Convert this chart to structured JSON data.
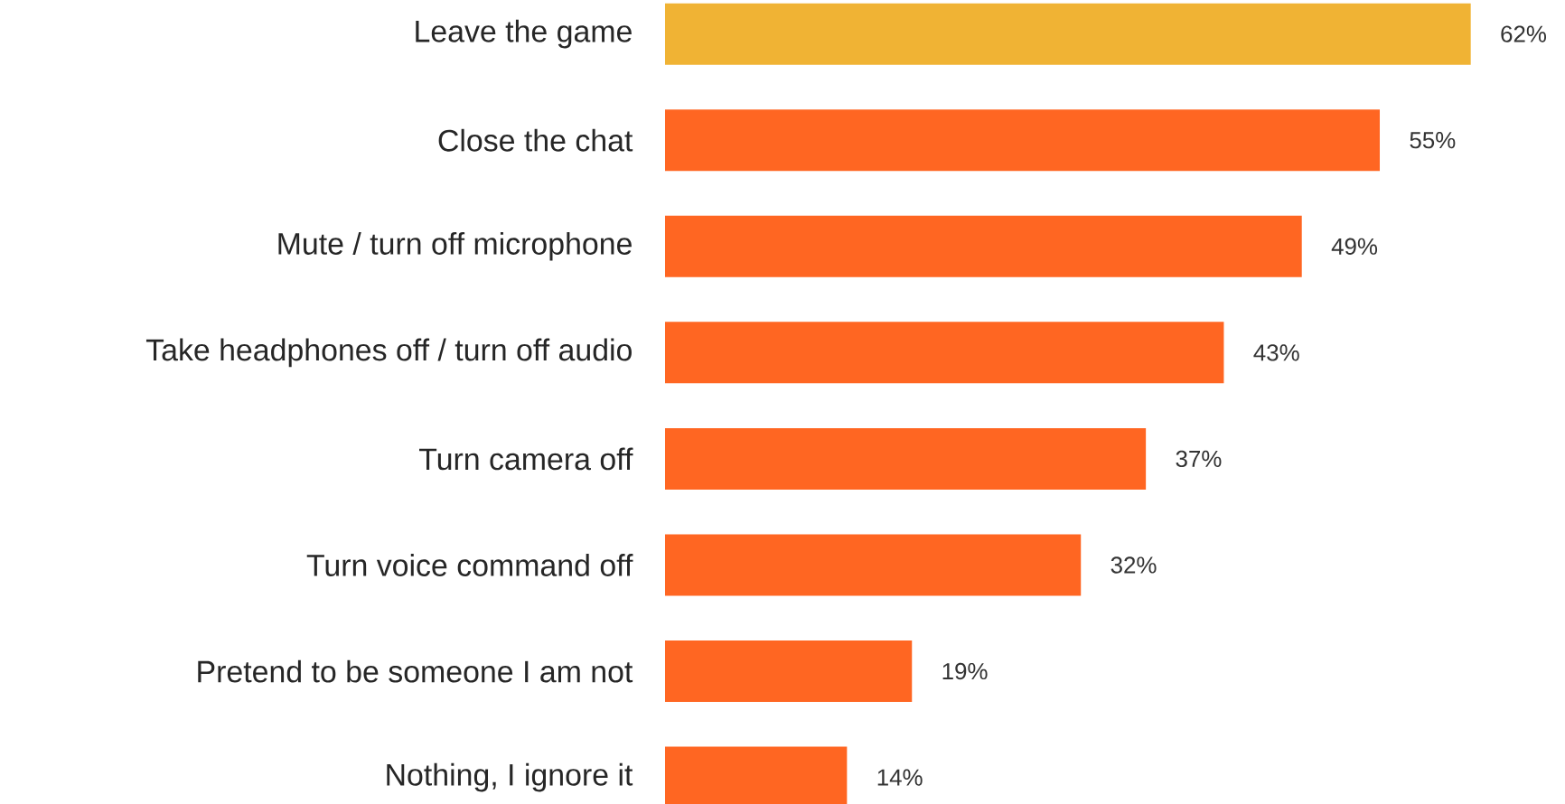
{
  "chart_data": {
    "type": "bar",
    "orientation": "horizontal",
    "categories": [
      "Leave the game",
      "Close the chat",
      "Mute / turn off microphone",
      "Take headphones off / turn off audio",
      "Turn camera off",
      "Turn voice command off",
      "Pretend to be someone I am not",
      "Nothing, I ignore it"
    ],
    "values": [
      62,
      55,
      49,
      43,
      37,
      32,
      19,
      14
    ],
    "value_labels": [
      "62%",
      "55%",
      "49%",
      "43%",
      "37%",
      "32%",
      "19%",
      "14%"
    ],
    "colors": [
      "#f0b334",
      "#ff6622",
      "#ff6622",
      "#ff6622",
      "#ff6622",
      "#ff6622",
      "#ff6622",
      "#ff6622"
    ]
  }
}
